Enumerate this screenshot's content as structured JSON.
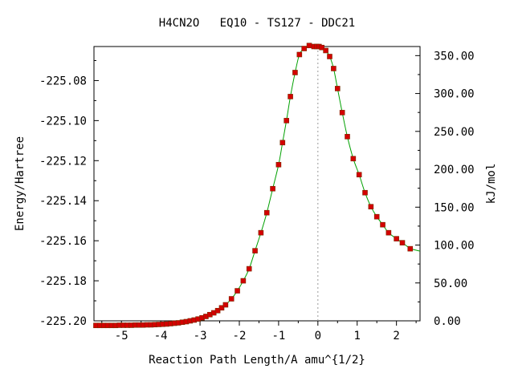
{
  "colors": {
    "background": "#ffffff",
    "axes": "#000000",
    "curve": "#00a000",
    "points": "#d40000",
    "ts_marker": "#9a9a9a"
  },
  "chart_data": {
    "type": "line",
    "title": "H4CN2O   EQ10 - TS127 - DDC21",
    "xlabel": "Reaction Path Length/A amu^{1/2}",
    "ylabel": "Energy/Hartree",
    "y2label": "kJ/mol",
    "xlim": [
      -5.7,
      2.6
    ],
    "ylim": [
      -225.2,
      -225.063
    ],
    "y2lim": [
      0,
      362
    ],
    "xticks": [
      -5,
      -4,
      -3,
      -2,
      -1,
      0,
      1,
      2
    ],
    "xtick_labels": [
      "-5",
      "-4",
      "-3",
      "-2",
      "-1",
      "0",
      "1",
      "2"
    ],
    "yticks": [
      -225.08,
      -225.1,
      -225.12,
      -225.14,
      -225.16,
      -225.18,
      -225.2
    ],
    "ytick_labels": [
      "-225.08",
      "-225.10",
      "-225.12",
      "-225.14",
      "-225.16",
      "-225.18",
      "-225.20"
    ],
    "y2ticks": [
      350,
      300,
      250,
      200,
      150,
      100,
      50,
      0
    ],
    "y2tick_labels": [
      "350.00",
      "300.00",
      "250.00",
      "200.00",
      "150.00",
      "100.00",
      "50.00",
      "0.00"
    ],
    "transition_state_x": 0,
    "grid": false,
    "legend": "none",
    "series": [
      {
        "x": [
          -5.65,
          -5.55,
          -5.45,
          -5.35,
          -5.25,
          -5.15,
          -5.05,
          -4.95,
          -4.85,
          -4.75,
          -4.65,
          -4.55,
          -4.45,
          -4.35,
          -4.25,
          -4.15,
          -4.05,
          -3.95,
          -3.85,
          -3.75,
          -3.65,
          -3.55,
          -3.45,
          -3.35,
          -3.25,
          -3.15,
          -3.05,
          -2.95,
          -2.85,
          -2.75,
          -2.65,
          -2.55,
          -2.45,
          -2.35,
          -2.2,
          -2.05,
          -1.9,
          -1.75,
          -1.6,
          -1.45,
          -1.3,
          -1.15,
          -1.0,
          -0.9,
          -0.8,
          -0.7,
          -0.58,
          -0.47,
          -0.35,
          -0.22,
          -0.1,
          -0.03,
          0.03,
          0.1,
          0.2,
          0.3,
          0.4,
          0.5,
          0.62,
          0.75,
          0.9,
          1.05,
          1.2,
          1.35,
          1.5,
          1.65,
          1.8,
          2.0,
          2.15,
          2.35
        ],
        "y": [
          -225.2023,
          -225.2023,
          -225.2023,
          -225.2023,
          -225.2023,
          -225.2023,
          -225.2022,
          -225.2022,
          -225.2022,
          -225.2022,
          -225.2021,
          -225.2021,
          -225.2021,
          -225.202,
          -225.202,
          -225.2019,
          -225.2018,
          -225.2017,
          -225.2016,
          -225.2014,
          -225.2012,
          -225.201,
          -225.2007,
          -225.2004,
          -225.2,
          -225.1996,
          -225.1991,
          -225.1985,
          -225.1978,
          -225.1969,
          -225.196,
          -225.1949,
          -225.1935,
          -225.192,
          -225.189,
          -225.185,
          -225.18,
          -225.174,
          -225.165,
          -225.156,
          -225.146,
          -225.134,
          -225.122,
          -225.111,
          -225.1,
          -225.088,
          -225.076,
          -225.067,
          -225.064,
          -225.0625,
          -225.063,
          -225.063,
          -225.063,
          -225.0635,
          -225.065,
          -225.068,
          -225.074,
          -225.084,
          -225.096,
          -225.108,
          -225.119,
          -225.127,
          -225.136,
          -225.143,
          -225.148,
          -225.152,
          -225.156,
          -225.159,
          -225.161,
          -225.164
        ]
      }
    ]
  }
}
